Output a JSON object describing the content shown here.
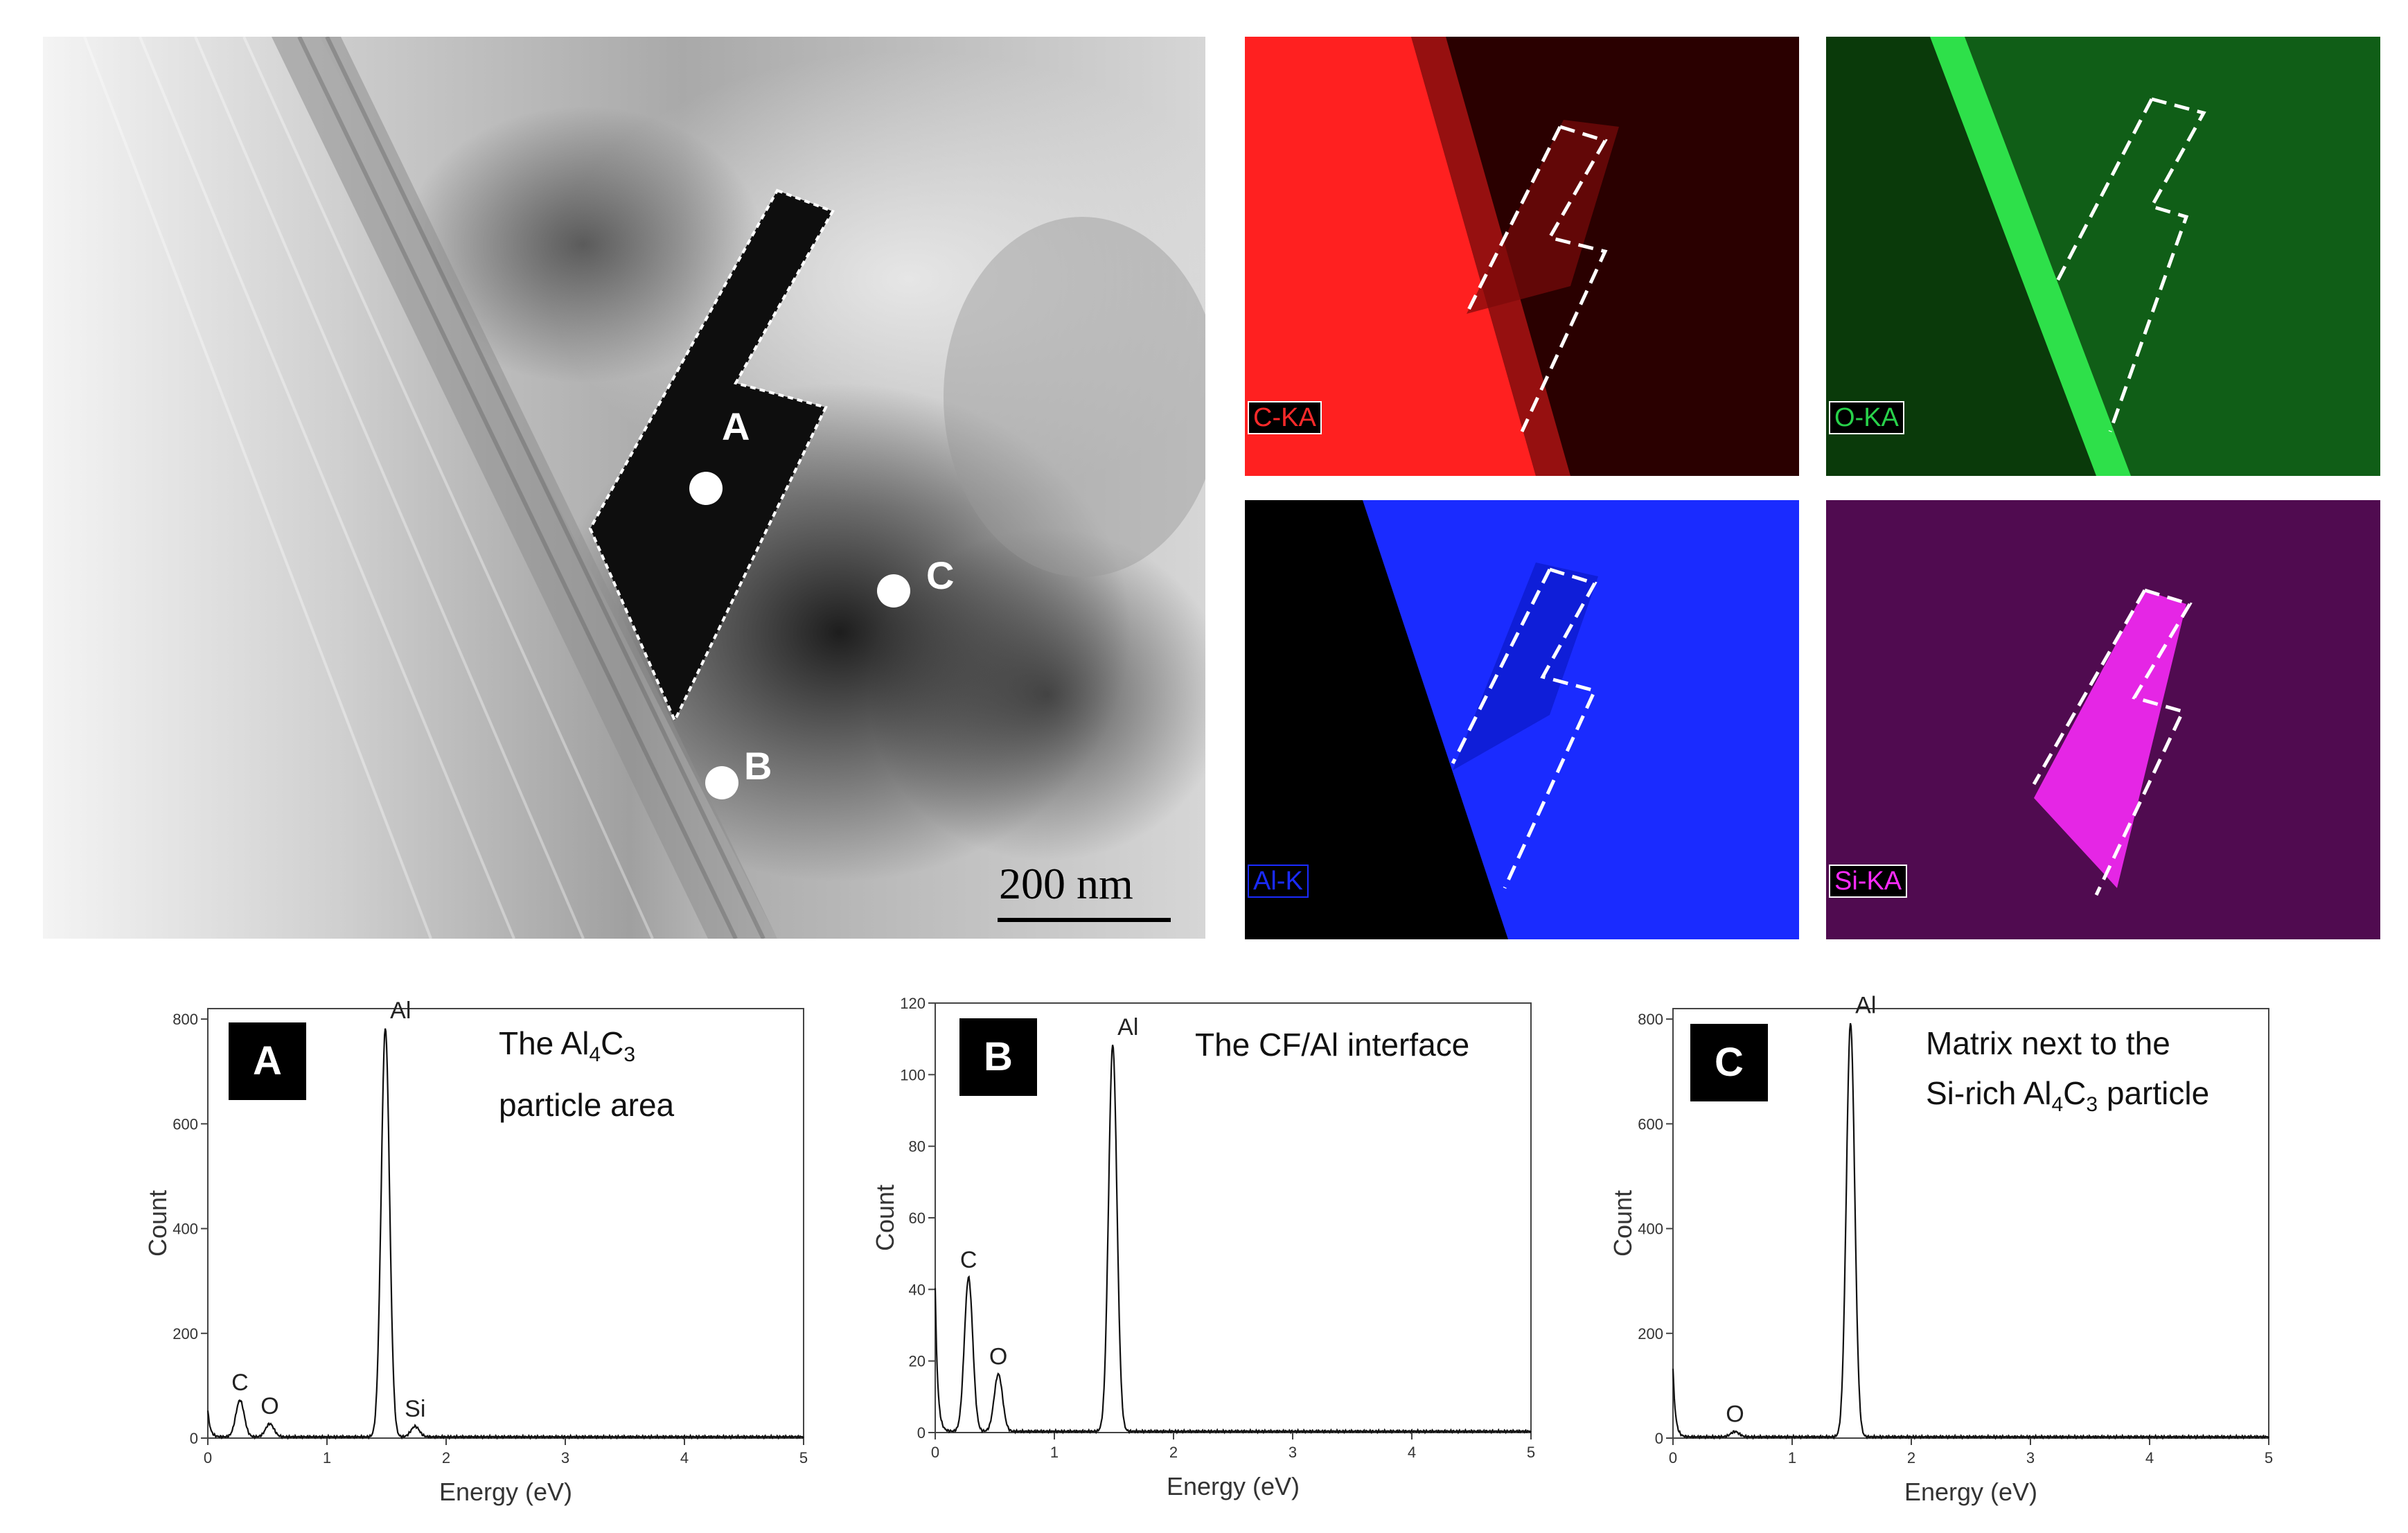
{
  "tem": {
    "markers": [
      {
        "id": "A",
        "label": "A"
      },
      {
        "id": "B",
        "label": "B"
      },
      {
        "id": "C",
        "label": "C"
      }
    ],
    "scalebar": "200 nm"
  },
  "maps": [
    {
      "id": "c",
      "label": "C-KA",
      "color": "#ff2a2a"
    },
    {
      "id": "o",
      "label": "O-KA",
      "color": "#28d24a"
    },
    {
      "id": "al",
      "label": "Al-K",
      "color": "#1a2bff"
    },
    {
      "id": "si",
      "label": "Si-KA",
      "color": "#ff2bff"
    }
  ],
  "spectra": [
    {
      "panel": "A",
      "title_lines": [
        [
          "The Al",
          "4",
          "C",
          "3",
          ""
        ],
        [
          "particle area"
        ]
      ],
      "xlabel": "Energy (eV)",
      "ylabel": "Count",
      "xlim": [
        0,
        5
      ],
      "ylim": [
        0,
        820
      ],
      "xticks": [
        0,
        1,
        2,
        3,
        4,
        5
      ],
      "yticks": [
        0,
        200,
        400,
        600,
        800
      ],
      "peaks": [
        {
          "label": "C",
          "x": 0.27,
          "y": 70
        },
        {
          "label": "O",
          "x": 0.52,
          "y": 25
        },
        {
          "label": "Al",
          "x": 1.49,
          "y": 780
        },
        {
          "label": "Si",
          "x": 1.74,
          "y": 20
        }
      ],
      "baseline_x0": 50
    },
    {
      "panel": "B",
      "title_lines": [
        [
          "The CF/Al interface"
        ]
      ],
      "xlabel": "Energy (eV)",
      "ylabel": "Count",
      "xlim": [
        0,
        5
      ],
      "ylim": [
        0,
        120
      ],
      "xticks": [
        0,
        1,
        2,
        3,
        4,
        5
      ],
      "yticks": [
        0,
        20,
        40,
        60,
        80,
        100,
        120
      ],
      "peaks": [
        {
          "label": "C",
          "x": 0.28,
          "y": 43
        },
        {
          "label": "O",
          "x": 0.53,
          "y": 16
        },
        {
          "label": "Al",
          "x": 1.49,
          "y": 108
        }
      ],
      "baseline_x0": 40
    },
    {
      "panel": "C",
      "title_lines": [
        [
          "Matrix next to the"
        ],
        [
          "Si-rich Al",
          "4",
          "C",
          "3",
          " particle"
        ]
      ],
      "xlabel": "Energy (eV)",
      "ylabel": "Count",
      "xlim": [
        0,
        5
      ],
      "ylim": [
        0,
        820
      ],
      "xticks": [
        0,
        1,
        2,
        3,
        4,
        5
      ],
      "yticks": [
        0,
        200,
        400,
        600,
        800
      ],
      "peaks": [
        {
          "label": "O",
          "x": 0.52,
          "y": 10
        },
        {
          "label": "Al",
          "x": 1.49,
          "y": 790
        }
      ],
      "baseline_x0": 130
    }
  ]
}
